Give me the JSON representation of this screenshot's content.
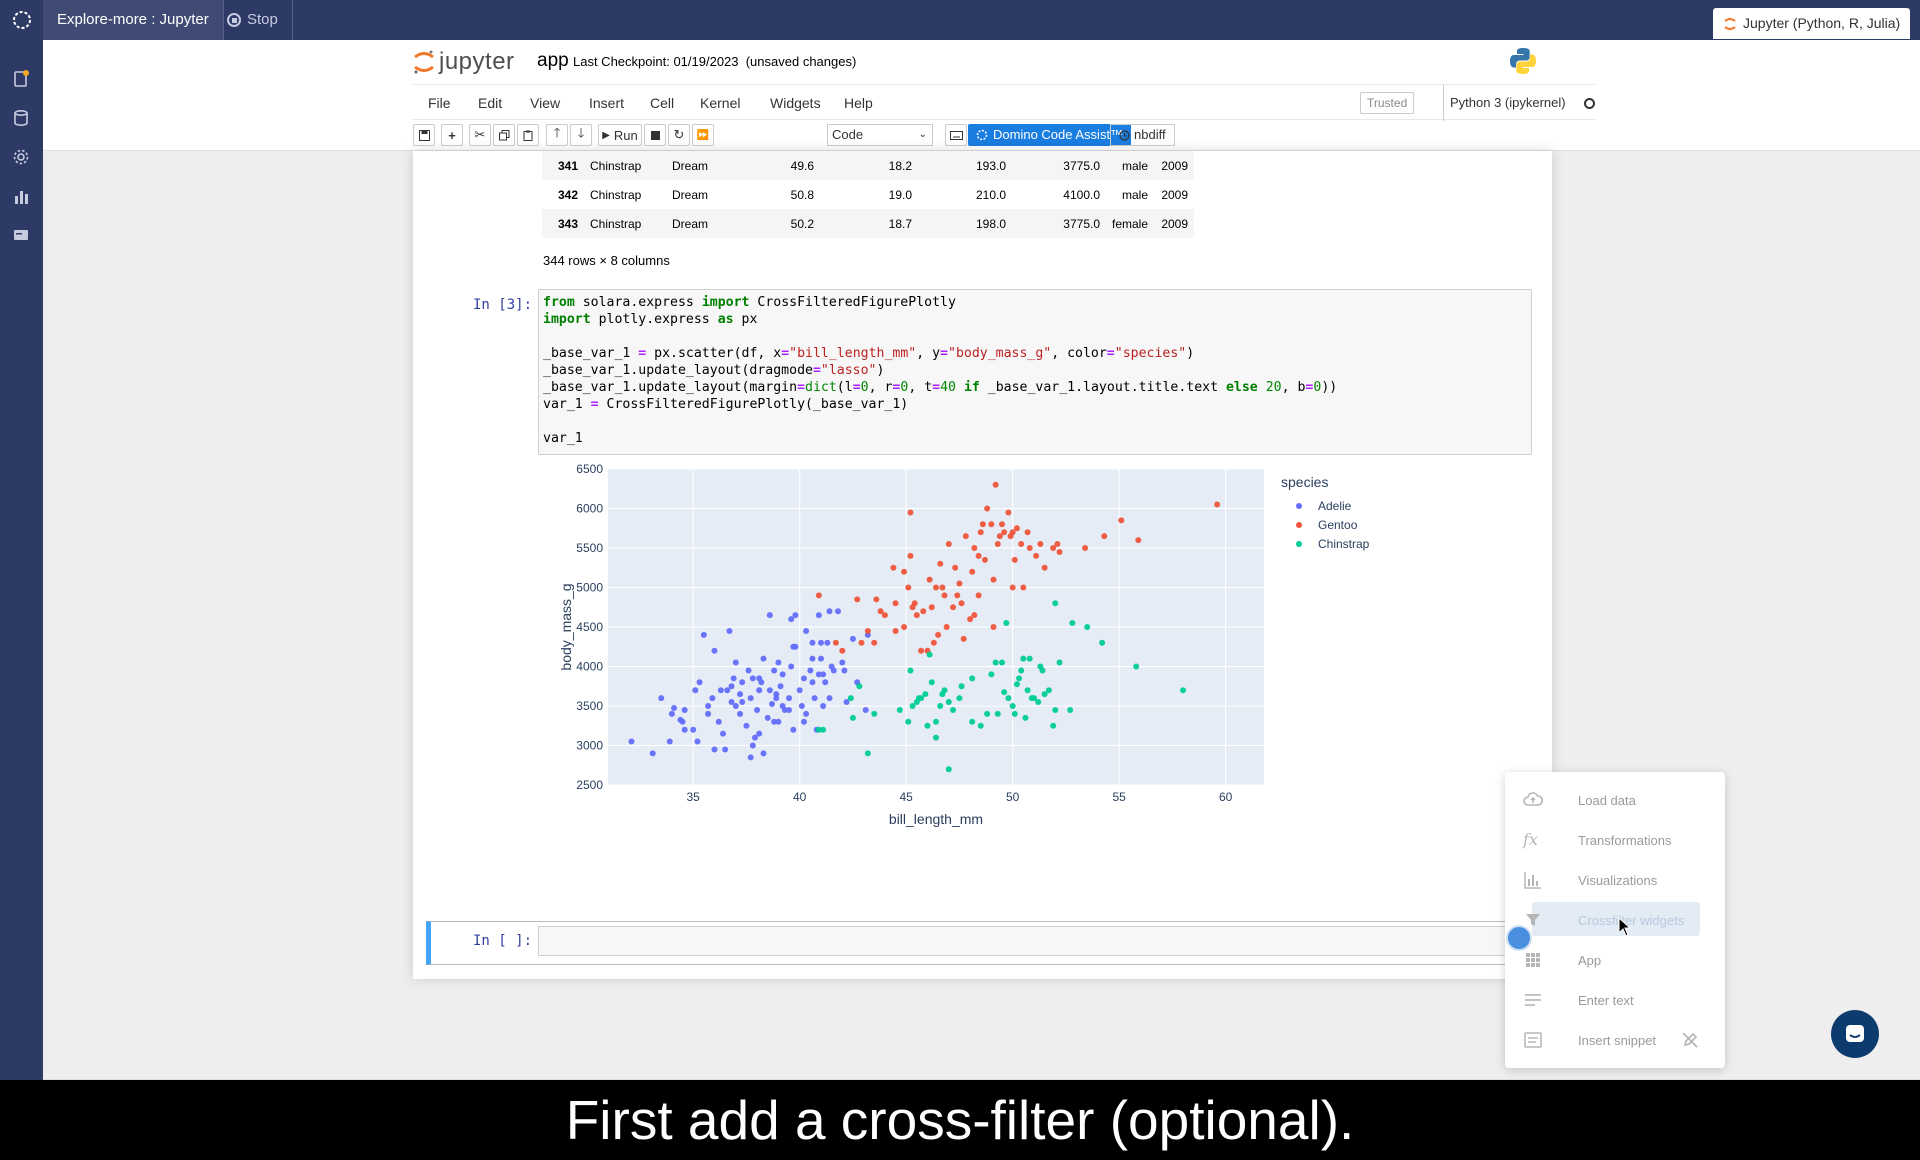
{
  "topbar": {
    "app_title": "Explore-more : Jupyter",
    "stop_label": "Stop",
    "env_label": "Jupyter (Python, R, Julia)"
  },
  "rail": {
    "icons": [
      "files-icon",
      "data-icon",
      "settings-icon",
      "chart-icon",
      "card-icon"
    ],
    "notification_color": "#f5a623"
  },
  "header": {
    "logo_text": "jupyter",
    "notebook_name": "app",
    "checkpoint": "Last Checkpoint: 01/19/2023  (unsaved changes)"
  },
  "menu": {
    "items": [
      "File",
      "Edit",
      "View",
      "Insert",
      "Cell",
      "Kernel",
      "Widgets",
      "Help"
    ],
    "trusted": "Trusted",
    "kernel": "Python 3 (ipykernel)"
  },
  "toolbar": {
    "run_label": "Run",
    "cell_type": "Code",
    "domino_label": "Domino Code Assist™",
    "nbdiff_label": "nbdiff"
  },
  "table": {
    "rows": [
      [
        "341",
        "Chinstrap",
        "Dream",
        "49.6",
        "18.2",
        "193.0",
        "3775.0",
        "male",
        "2009"
      ],
      [
        "342",
        "Chinstrap",
        "Dream",
        "50.8",
        "19.0",
        "210.0",
        "4100.0",
        "male",
        "2009"
      ],
      [
        "343",
        "Chinstrap",
        "Dream",
        "50.2",
        "18.7",
        "198.0",
        "3775.0",
        "female",
        "2009"
      ]
    ],
    "info": "344 rows × 8 columns"
  },
  "cells": {
    "code_prompt": "In [3]:",
    "empty_prompt": "In [ ]:"
  },
  "chart_data": {
    "type": "scatter",
    "title": "",
    "xlabel": "bill_length_mm",
    "ylabel": "body_mass_g",
    "xlim": [
      31,
      61.8
    ],
    "ylim": [
      2500,
      6500
    ],
    "xticks": [
      35,
      40,
      45,
      50,
      55,
      60
    ],
    "yticks": [
      2500,
      3000,
      3500,
      4000,
      4500,
      5000,
      5500,
      6000,
      6500
    ],
    "legend_title": "species",
    "legend_position": "right",
    "grid": true,
    "series": [
      {
        "name": "Adelie",
        "color": "#636efa",
        "points": [
          [
            32.1,
            3050
          ],
          [
            33.1,
            2900
          ],
          [
            33.5,
            3600
          ],
          [
            34.0,
            3400
          ],
          [
            34.5,
            3300
          ],
          [
            34.6,
            3450
          ],
          [
            35.0,
            3200
          ],
          [
            35.2,
            3050
          ],
          [
            35.5,
            4400
          ],
          [
            36.0,
            4200
          ],
          [
            34.1,
            3475
          ],
          [
            34.4,
            3325
          ],
          [
            35.1,
            3700
          ],
          [
            35.3,
            3800
          ],
          [
            35.7,
            3500
          ],
          [
            35.9,
            3600
          ],
          [
            36.2,
            3300
          ],
          [
            36.4,
            3150
          ],
          [
            36.6,
            3700
          ],
          [
            36.8,
            3750
          ],
          [
            37.0,
            3500
          ],
          [
            37.2,
            3400
          ],
          [
            37.3,
            3550
          ],
          [
            37.5,
            3250
          ],
          [
            37.7,
            3600
          ],
          [
            37.8,
            3000
          ],
          [
            38.0,
            3450
          ],
          [
            38.1,
            3150
          ],
          [
            38.2,
            3800
          ],
          [
            38.3,
            2900
          ],
          [
            38.5,
            3350
          ],
          [
            38.6,
            3700
          ],
          [
            38.7,
            3525
          ],
          [
            38.8,
            3950
          ],
          [
            38.9,
            3650
          ],
          [
            39.0,
            3300
          ],
          [
            39.1,
            3750
          ],
          [
            39.2,
            3900
          ],
          [
            39.3,
            3450
          ],
          [
            39.5,
            3600
          ],
          [
            39.6,
            4000
          ],
          [
            39.7,
            3200
          ],
          [
            39.8,
            4250
          ],
          [
            40.0,
            3700
          ],
          [
            40.1,
            3500
          ],
          [
            40.2,
            3850
          ],
          [
            40.3,
            3400
          ],
          [
            40.5,
            3950
          ],
          [
            40.6,
            4300
          ],
          [
            40.7,
            3600
          ],
          [
            40.8,
            3200
          ],
          [
            40.9,
            3900
          ],
          [
            41.0,
            4100
          ],
          [
            41.1,
            3500
          ],
          [
            41.2,
            3800
          ],
          [
            41.3,
            4300
          ],
          [
            41.4,
            3600
          ],
          [
            41.5,
            4000
          ],
          [
            41.6,
            3950
          ],
          [
            41.8,
            4700
          ],
          [
            42.0,
            4050
          ],
          [
            42.2,
            3550
          ],
          [
            42.5,
            4350
          ],
          [
            42.7,
            3800
          ],
          [
            43.2,
            4400
          ],
          [
            38.6,
            4650
          ],
          [
            36.7,
            4450
          ],
          [
            39.6,
            4600
          ],
          [
            40.6,
            4100
          ],
          [
            37.6,
            3950
          ],
          [
            37.9,
            3100
          ],
          [
            36.0,
            2950
          ],
          [
            38.1,
            3700
          ],
          [
            39.0,
            4050
          ],
          [
            41.1,
            3900
          ],
          [
            40.9,
            4650
          ],
          [
            39.7,
            4250
          ],
          [
            36.9,
            3850
          ],
          [
            38.8,
            3300
          ],
          [
            37.3,
            3800
          ],
          [
            35.7,
            3400
          ],
          [
            34.6,
            3200
          ],
          [
            33.9,
            3050
          ],
          [
            36.3,
            3700
          ],
          [
            37.8,
            3850
          ],
          [
            39.2,
            3500
          ],
          [
            40.6,
            3800
          ],
          [
            41.4,
            4700
          ],
          [
            42.1,
            3950
          ],
          [
            43.1,
            3450
          ],
          [
            37.7,
            2850
          ],
          [
            36.5,
            2950
          ],
          [
            38.9,
            3600
          ],
          [
            40.2,
            3300
          ],
          [
            39.5,
            3450
          ],
          [
            37.2,
            3650
          ],
          [
            36.8,
            3550
          ],
          [
            38.1,
            3850
          ],
          [
            40.3,
            4450
          ],
          [
            41.0,
            4300
          ],
          [
            39.8,
            4650
          ],
          [
            38.3,
            4100
          ],
          [
            37.0,
            4050
          ]
        ]
      },
      {
        "name": "Gentoo",
        "color": "#ef553b",
        "points": [
          [
            40.9,
            4900
          ],
          [
            42.0,
            4200
          ],
          [
            42.7,
            4850
          ],
          [
            43.2,
            4450
          ],
          [
            43.5,
            4300
          ],
          [
            44.0,
            4650
          ],
          [
            44.4,
            5250
          ],
          [
            44.5,
            4450
          ],
          [
            44.9,
            5200
          ],
          [
            45.1,
            5000
          ],
          [
            45.2,
            5400
          ],
          [
            45.4,
            4800
          ],
          [
            45.5,
            4650
          ],
          [
            45.8,
            4700
          ],
          [
            46.0,
            4200
          ],
          [
            46.1,
            5100
          ],
          [
            46.2,
            4750
          ],
          [
            46.4,
            5000
          ],
          [
            46.5,
            4400
          ],
          [
            46.6,
            5300
          ],
          [
            46.8,
            4900
          ],
          [
            47.0,
            5550
          ],
          [
            47.2,
            4750
          ],
          [
            47.3,
            5250
          ],
          [
            47.5,
            5050
          ],
          [
            47.7,
            4350
          ],
          [
            47.8,
            5650
          ],
          [
            48.1,
            5200
          ],
          [
            48.2,
            5500
          ],
          [
            48.4,
            4900
          ],
          [
            48.5,
            5700
          ],
          [
            48.7,
            5350
          ],
          [
            48.8,
            6000
          ],
          [
            49.0,
            5800
          ],
          [
            49.1,
            5100
          ],
          [
            49.2,
            6300
          ],
          [
            49.3,
            5550
          ],
          [
            49.4,
            5650
          ],
          [
            49.5,
            5800
          ],
          [
            49.6,
            5700
          ],
          [
            49.8,
            5950
          ],
          [
            50.0,
            5700
          ],
          [
            50.1,
            5350
          ],
          [
            50.2,
            5750
          ],
          [
            50.4,
            5550
          ],
          [
            50.5,
            5000
          ],
          [
            50.8,
            5500
          ],
          [
            51.1,
            5400
          ],
          [
            51.3,
            5550
          ],
          [
            51.5,
            5250
          ],
          [
            52.1,
            5550
          ],
          [
            52.2,
            5450
          ],
          [
            53.4,
            5500
          ],
          [
            54.3,
            5650
          ],
          [
            55.1,
            5850
          ],
          [
            55.9,
            5600
          ],
          [
            59.6,
            6050
          ],
          [
            45.2,
            5950
          ],
          [
            43.8,
            4700
          ],
          [
            44.5,
            4800
          ],
          [
            46.3,
            4300
          ],
          [
            47.6,
            4800
          ],
          [
            48.0,
            4600
          ],
          [
            48.6,
            5800
          ],
          [
            49.9,
            5650
          ],
          [
            50.0,
            5000
          ],
          [
            45.3,
            4750
          ],
          [
            46.9,
            4500
          ],
          [
            47.4,
            4900
          ],
          [
            48.4,
            5400
          ],
          [
            42.9,
            4300
          ],
          [
            41.7,
            4300
          ],
          [
            43.6,
            4850
          ],
          [
            44.9,
            4500
          ],
          [
            45.7,
            4200
          ],
          [
            46.7,
            5000
          ],
          [
            48.2,
            4650
          ],
          [
            49.1,
            4500
          ],
          [
            50.7,
            5700
          ],
          [
            51.9,
            5500
          ]
        ]
      },
      {
        "name": "Chinstrap",
        "color": "#00cc96",
        "points": [
          [
            40.9,
            3200
          ],
          [
            41.1,
            3200
          ],
          [
            42.4,
            3600
          ],
          [
            42.5,
            3350
          ],
          [
            42.8,
            3750
          ],
          [
            43.2,
            2900
          ],
          [
            43.5,
            3400
          ],
          [
            45.1,
            3300
          ],
          [
            45.2,
            3950
          ],
          [
            45.3,
            3500
          ],
          [
            45.5,
            3550
          ],
          [
            45.6,
            3600
          ],
          [
            45.9,
            3650
          ],
          [
            46.0,
            3250
          ],
          [
            46.1,
            4150
          ],
          [
            46.4,
            3300
          ],
          [
            46.6,
            3500
          ],
          [
            46.7,
            3650
          ],
          [
            46.8,
            3700
          ],
          [
            47.0,
            2700
          ],
          [
            47.2,
            3450
          ],
          [
            47.5,
            3600
          ],
          [
            47.6,
            3750
          ],
          [
            48.1,
            3850
          ],
          [
            48.5,
            3250
          ],
          [
            48.8,
            3400
          ],
          [
            49.0,
            3900
          ],
          [
            49.2,
            4050
          ],
          [
            49.5,
            4050
          ],
          [
            49.6,
            3675
          ],
          [
            49.8,
            3600
          ],
          [
            50.0,
            3500
          ],
          [
            50.2,
            3775
          ],
          [
            50.3,
            3850
          ],
          [
            50.4,
            3950
          ],
          [
            50.5,
            4100
          ],
          [
            50.6,
            3350
          ],
          [
            50.7,
            3700
          ],
          [
            50.8,
            4100
          ],
          [
            51.0,
            3600
          ],
          [
            51.3,
            4000
          ],
          [
            51.5,
            3650
          ],
          [
            51.7,
            3700
          ],
          [
            51.9,
            3250
          ],
          [
            52.0,
            4800
          ],
          [
            52.2,
            4050
          ],
          [
            52.7,
            3450
          ],
          [
            52.8,
            4550
          ],
          [
            53.5,
            4500
          ],
          [
            54.2,
            4300
          ],
          [
            55.8,
            4000
          ],
          [
            58.0,
            3700
          ],
          [
            49.7,
            4550
          ],
          [
            51.4,
            3950
          ],
          [
            50.9,
            3600
          ],
          [
            49.3,
            3400
          ],
          [
            48.1,
            3300
          ],
          [
            47.0,
            3550
          ],
          [
            46.2,
            3800
          ],
          [
            44.7,
            3450
          ],
          [
            45.7,
            3600
          ],
          [
            46.4,
            3100
          ],
          [
            52.0,
            3450
          ],
          [
            50.1,
            3400
          ],
          [
            51.2,
            3550
          ]
        ]
      }
    ]
  },
  "fab_menu": {
    "items": [
      {
        "label": "Load data",
        "icon": "cloud-upload-icon"
      },
      {
        "label": "Transformations",
        "icon": "function-icon"
      },
      {
        "label": "Visualizations",
        "icon": "bar-chart-icon"
      },
      {
        "label": "Crossfilter widgets",
        "icon": "filter-icon"
      },
      {
        "label": "App",
        "icon": "grid-icon"
      },
      {
        "label": "Enter text",
        "icon": "text-lines-icon"
      },
      {
        "label": "Insert snippet",
        "icon": "snippet-icon"
      }
    ]
  },
  "caption": "First add a cross-filter (optional)."
}
